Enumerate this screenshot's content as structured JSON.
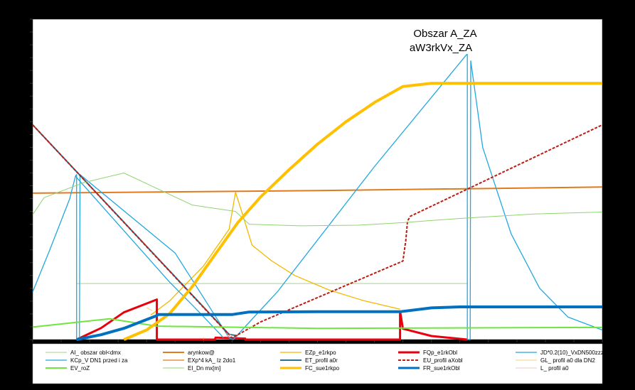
{
  "chart_data": {
    "type": "line",
    "title": "Obszar A_ZA",
    "subtitle": "aW3rkVx_ZA",
    "xlabel": "",
    "ylabel": "",
    "xlim": [
      0,
      100
    ],
    "ylim": [
      0,
      100
    ],
    "grid": false,
    "legend_position": "bottom",
    "series": [
      {
        "name": "AI_ obszar obl<dmx",
        "color": "#A9D18E",
        "width": 1,
        "points": [
          [
            7.7,
            17.5
          ],
          [
            76.3,
            17.5
          ]
        ]
      },
      {
        "name": "arynkow@",
        "color": "#E07A1F",
        "width": 2,
        "points": [
          [
            0,
            45.7
          ],
          [
            50,
            46.5
          ],
          [
            100,
            47.6
          ]
        ]
      },
      {
        "name": "EZp_e1rkpo",
        "color": "#F2B800",
        "width": 1.3,
        "points": [
          [
            20.7,
            7.6
          ],
          [
            24,
            12
          ],
          [
            30,
            23
          ],
          [
            34.5,
            34.5
          ],
          [
            35.6,
            46
          ],
          [
            36.8,
            39.3
          ],
          [
            38.5,
            29.5
          ],
          [
            42,
            24.5
          ],
          [
            46,
            20
          ],
          [
            52,
            15.5
          ],
          [
            58,
            12.2
          ],
          [
            64.5,
            9.5
          ]
        ]
      },
      {
        "name": "FQp_e1rkObl",
        "color": "#E8000D",
        "width": 3,
        "points": [
          [
            7.7,
            0
          ],
          [
            12,
            3.6
          ],
          [
            16,
            8.5
          ],
          [
            21.8,
            12.5
          ],
          [
            21.8,
            0
          ],
          [
            32,
            0
          ],
          [
            32.1,
            0.6
          ],
          [
            37.3,
            0.3
          ],
          [
            37.3,
            0
          ],
          [
            64.5,
            0
          ],
          [
            64.5,
            8.8
          ],
          [
            65,
            3.4
          ],
          [
            70,
            1.1
          ],
          [
            76.3,
            0
          ]
        ]
      },
      {
        "name": "JD*0.2(10)_VxDN500zzz",
        "color": "#22A8E0",
        "width": 1.3,
        "points": [
          [
            0,
            14.9
          ],
          [
            3,
            28
          ],
          [
            6.5,
            44
          ],
          [
            7.5,
            51
          ],
          [
            7.7,
            51.5
          ],
          [
            7.7,
            0
          ],
          [
            8.2,
            0
          ],
          [
            8.3,
            51.5
          ],
          [
            10,
            49
          ],
          [
            25,
            27
          ],
          [
            34.5,
            0.5
          ],
          [
            35.2,
            0
          ],
          [
            43,
            15
          ],
          [
            60,
            54
          ],
          [
            76.2,
            89
          ],
          [
            76.3,
            89
          ],
          [
            76.3,
            0
          ],
          [
            76.8,
            0
          ],
          [
            76.9,
            87
          ],
          [
            79,
            60
          ],
          [
            84,
            33
          ],
          [
            89,
            16
          ],
          [
            94,
            7
          ],
          [
            100,
            3
          ]
        ]
      },
      {
        "name": "KCp_V DN1 przed i za",
        "color": "#22A8E0",
        "width": 1.3,
        "points": [
          [
            7.5,
            51
          ],
          [
            16,
            34
          ],
          [
            24,
            18
          ],
          [
            29,
            9
          ],
          [
            33,
            1.5
          ],
          [
            33.5,
            0.5
          ]
        ]
      },
      {
        "name": "EXp*4 kA_ Iz 2do1",
        "color": "#E07A1F",
        "width": 1.3,
        "points": [
          [
            30,
            0
          ],
          [
            30,
            0.5
          ]
        ]
      },
      {
        "name": "ET_profil a0r",
        "color": "#2D6F94",
        "width": 2,
        "points": [
          [
            0,
            67
          ],
          [
            34.5,
            1.6
          ],
          [
            36,
            1.2
          ]
        ]
      },
      {
        "name": "EU_profil aXobl",
        "color": "#B82016",
        "width": 2,
        "dash": "4,2",
        "points": [
          [
            0,
            67
          ],
          [
            35,
            0.5
          ],
          [
            36.5,
            2
          ],
          [
            40,
            5.5
          ],
          [
            65,
            24.5
          ],
          [
            65.5,
            31
          ],
          [
            65.8,
            37
          ],
          [
            66.3,
            38.5
          ],
          [
            100,
            67
          ]
        ]
      },
      {
        "name": "GL_ profil a0 dla DN2",
        "color": "#F5D080",
        "width": 1,
        "points": [
          [
            20,
            10
          ],
          [
            21,
            9
          ]
        ]
      },
      {
        "name": "EV_roZ",
        "color": "#6FE640",
        "width": 2,
        "points": [
          [
            0,
            3.9
          ],
          [
            13.5,
            6.5
          ],
          [
            21.8,
            4.2
          ],
          [
            50,
            3.5
          ],
          [
            100,
            3.8
          ]
        ]
      },
      {
        "name": "EI_Dn mx[m]",
        "color": "#8FD470",
        "width": 1,
        "points": [
          [
            0,
            39
          ],
          [
            2,
            44.3
          ],
          [
            9,
            49
          ],
          [
            16,
            52
          ],
          [
            28,
            42
          ],
          [
            35.6,
            40
          ],
          [
            38,
            36
          ],
          [
            47,
            35.5
          ],
          [
            57,
            35.7
          ],
          [
            65,
            36.5
          ],
          [
            75,
            37.8
          ],
          [
            88,
            39.2
          ],
          [
            100,
            39.8
          ]
        ]
      },
      {
        "name": "FC_sue1rkpo",
        "color": "#FFC000",
        "width": 4,
        "points": [
          [
            16,
            0
          ],
          [
            20,
            3
          ],
          [
            24,
            8
          ],
          [
            28,
            16.5
          ],
          [
            32,
            26.5
          ],
          [
            36,
            36.5
          ],
          [
            40,
            44.5
          ],
          [
            45,
            53
          ],
          [
            50,
            61
          ],
          [
            55,
            68
          ],
          [
            60,
            74
          ],
          [
            65,
            79
          ],
          [
            70,
            80
          ],
          [
            80,
            80
          ],
          [
            100,
            80
          ]
        ]
      },
      {
        "name": "FR_sue1rkObl",
        "color": "#0070C0",
        "width": 4,
        "points": [
          [
            7.7,
            0
          ],
          [
            12,
            1.5
          ],
          [
            16,
            3.5
          ],
          [
            21.8,
            7.5
          ],
          [
            22,
            7.8
          ],
          [
            35,
            7.8
          ],
          [
            38,
            8.6
          ],
          [
            50,
            8.7
          ],
          [
            64.5,
            8.7
          ],
          [
            70,
            9.9
          ],
          [
            75,
            10.2
          ],
          [
            100,
            10.2
          ]
        ]
      },
      {
        "name": "L_ profil a0",
        "color": "#F2C4C4",
        "width": 1,
        "points": [
          [
            33.8,
            1
          ],
          [
            34.8,
            1.5
          ]
        ]
      }
    ],
    "legend_rows": [
      [
        "AI_ obszar obl<dmx",
        "arynkow@",
        "EZp_e1rkpo",
        "FQp_e1rkObl",
        "JD*0.2(10)_VxDN500zzz"
      ],
      [
        "KCp_V DN1 przed i za",
        "EXp*4 kA_ Iz 2do1",
        "ET_profil a0r",
        "EU_profil aXobl",
        "GL_ profil a0 dla DN2"
      ],
      [
        "EV_roZ",
        "EI_Dn mx[m]",
        "FC_sue1rkpo",
        "FR_sue1rkObl",
        "L_ profil a0"
      ]
    ]
  }
}
